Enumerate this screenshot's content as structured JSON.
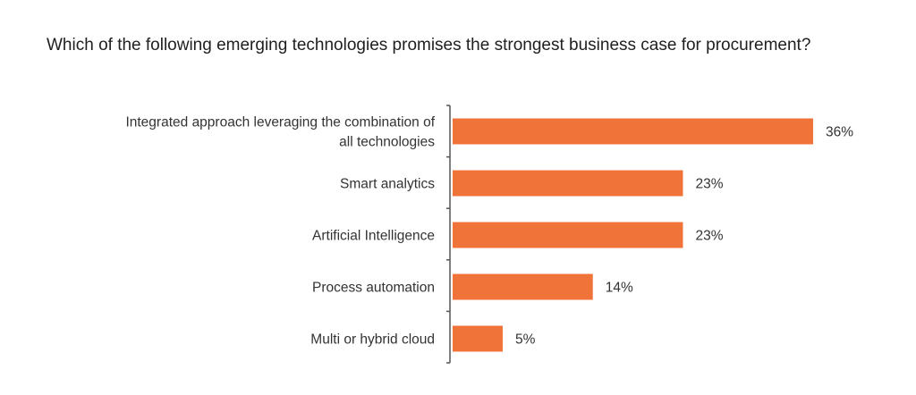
{
  "title": "Which of the following emerging technologies promises the strongest business case for procurement?",
  "colors": {
    "bar": "#f07339",
    "axis": "#555555",
    "text": "#333333"
  },
  "chart_data": {
    "type": "bar",
    "orientation": "horizontal",
    "title": "Which of the following emerging technologies promises the strongest business case for procurement?",
    "categories": [
      [
        "Integrated approach leveraging the combination of",
        "all technologies"
      ],
      [
        "Smart analytics"
      ],
      [
        "Artificial Intelligence"
      ],
      [
        "Process automation"
      ],
      [
        "Multi or hybrid cloud"
      ]
    ],
    "values": [
      36,
      23,
      23,
      14,
      5
    ],
    "value_labels": [
      "36%",
      "23%",
      "23%",
      "14%",
      "5%"
    ],
    "unit": "%",
    "xlim": [
      0,
      36
    ],
    "grid": false,
    "legend": "none"
  }
}
